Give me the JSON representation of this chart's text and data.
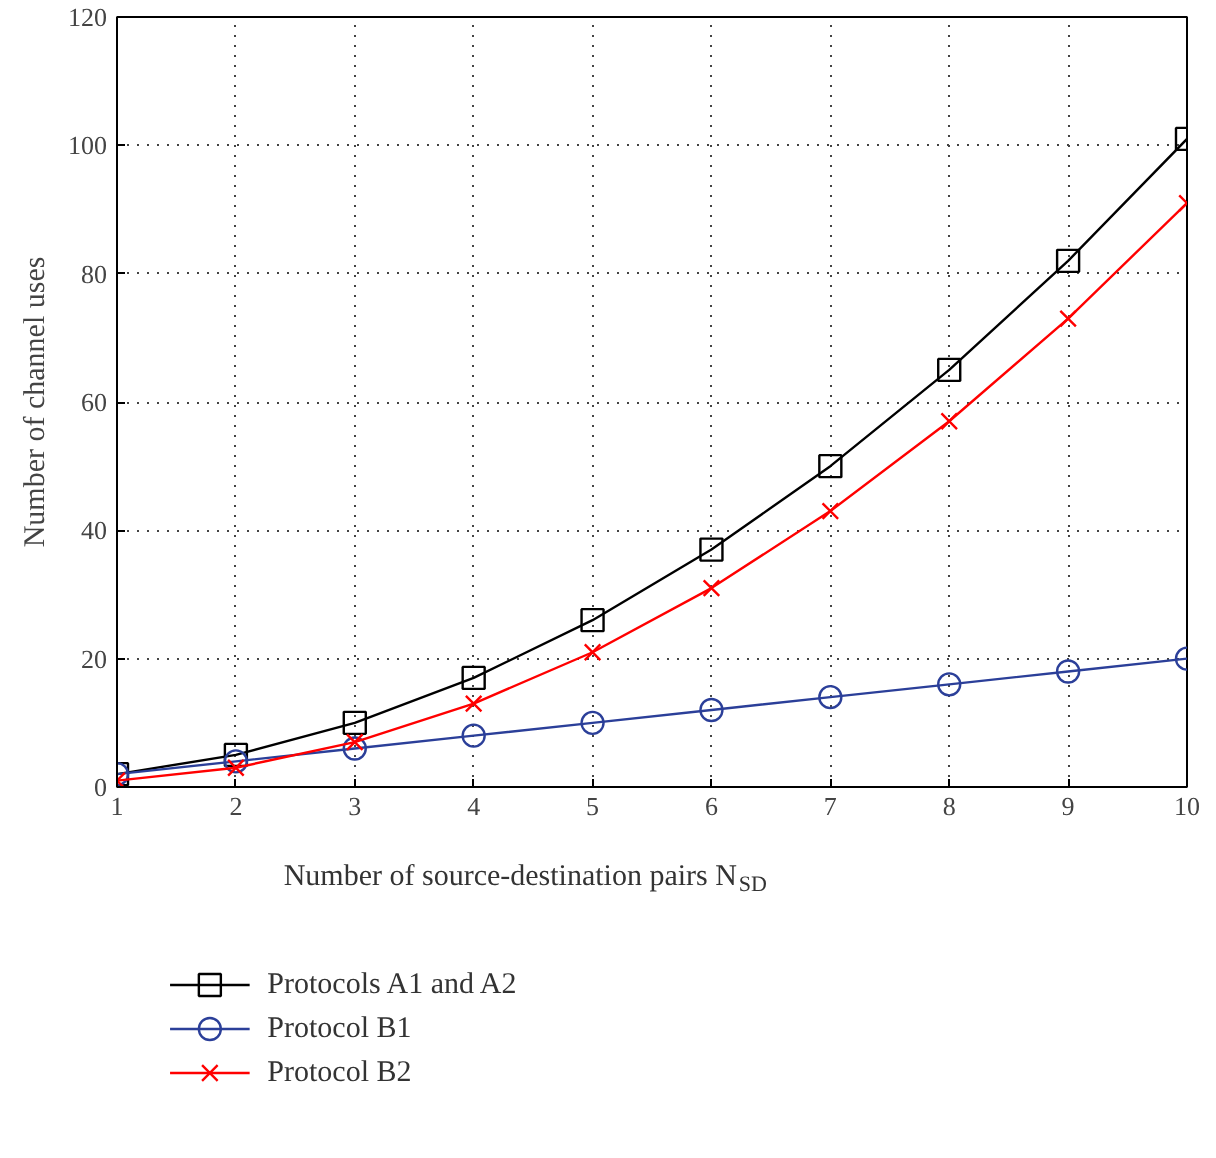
{
  "chart_data": {
    "type": "line",
    "xlabel": "Number of source-destination pairs N$_{SD}$",
    "ylabel": "Number of channel uses",
    "x": [
      1,
      2,
      3,
      4,
      5,
      6,
      7,
      8,
      9,
      10
    ],
    "series": [
      {
        "name": "Protocols A1 and A2",
        "color": "#000000",
        "marker": "square",
        "values": [
          2,
          5,
          10,
          17,
          26,
          37,
          50,
          65,
          82,
          101
        ]
      },
      {
        "name": "Protocol B1",
        "color": "#2b3f99",
        "marker": "circle",
        "values": [
          2,
          4,
          6,
          8,
          10,
          12,
          14,
          16,
          18,
          20
        ]
      },
      {
        "name": "Protocol B2",
        "color": "#ff0000",
        "marker": "cross",
        "values": [
          1,
          3,
          7,
          13,
          21,
          31,
          43,
          57,
          73,
          91
        ]
      }
    ],
    "xlim": [
      1,
      10
    ],
    "ylim": [
      0,
      120
    ],
    "xticks": [
      1,
      2,
      3,
      4,
      5,
      6,
      7,
      8,
      9,
      10
    ],
    "yticks": [
      0,
      20,
      40,
      60,
      80,
      100,
      120
    ],
    "grid": true,
    "legend": "bottom",
    "line_style": "solid"
  }
}
